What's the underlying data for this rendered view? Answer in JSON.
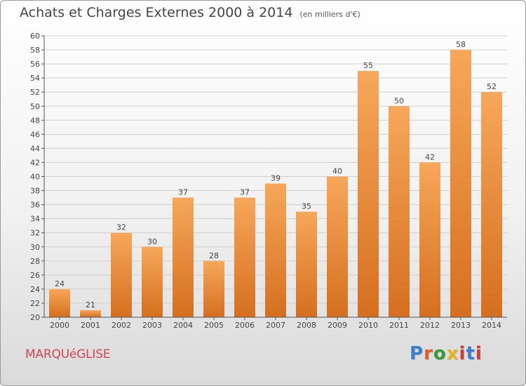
{
  "title": "Achats et Charges Externes 2000 à 2014",
  "subtitle": "(en milliers d'€)",
  "city": "MARQUéGLISE",
  "logo": {
    "p": "P",
    "r": "r",
    "o": "o",
    "x": "x",
    "i": "i",
    "t": "t",
    "i2": "i"
  },
  "colors": {
    "bar_light": "#f7a75a",
    "bar_dark": "#d56f1f",
    "grid": "#cfcfcf",
    "axis": "#555555",
    "city": "#d2465a"
  },
  "chart_data": {
    "type": "bar",
    "title": "Achats et Charges Externes 2000 à 2014",
    "subtitle": "(en milliers d'€)",
    "categories": [
      "2000",
      "2001",
      "2002",
      "2003",
      "2004",
      "2005",
      "2006",
      "2007",
      "2008",
      "2009",
      "2010",
      "2011",
      "2012",
      "2013",
      "2014"
    ],
    "values": [
      24,
      21,
      32,
      30,
      37,
      28,
      37,
      39,
      35,
      40,
      55,
      50,
      42,
      58,
      52
    ],
    "ylim": [
      20,
      60
    ],
    "yticks": [
      20,
      22,
      24,
      26,
      28,
      30,
      32,
      34,
      36,
      38,
      40,
      42,
      44,
      46,
      48,
      50,
      52,
      54,
      56,
      58,
      60
    ],
    "grid": true,
    "data_labels": true
  }
}
